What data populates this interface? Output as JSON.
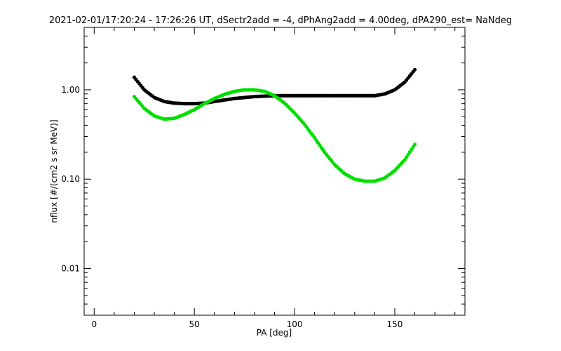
{
  "chart_data": {
    "type": "scatter",
    "title": "2021-02-01/17:20:24 - 17:26:26 UT, dSectr2add = -4, dPhAng2add = 4.00deg, dPA290_est=   NaNdeg",
    "xlabel": "PA [deg]",
    "ylabel": "nflux [#/(cm2 s sr MeV)]",
    "xlim": [
      -5,
      185
    ],
    "ylim": [
      0.003,
      5
    ],
    "yscale": "log",
    "grid": false,
    "x_ticks": [
      {
        "value": 0,
        "label": "0"
      },
      {
        "value": 50,
        "label": "50"
      },
      {
        "value": 100,
        "label": "100"
      },
      {
        "value": 150,
        "label": "150"
      }
    ],
    "y_ticks": [
      {
        "value": 0.01,
        "label": "0.01"
      },
      {
        "value": 0.1,
        "label": "0.10"
      },
      {
        "value": 1,
        "label": "1.00"
      }
    ],
    "series": [
      {
        "color": "#000000",
        "x": [
          20,
          25,
          30,
          35,
          40,
          45,
          50,
          55,
          60,
          65,
          70,
          75,
          80,
          85,
          90,
          95,
          100,
          105,
          110,
          115,
          120,
          125,
          130,
          135,
          140,
          145,
          150,
          155,
          160
        ],
        "y": [
          1.38,
          1.0,
          0.82,
          0.74,
          0.71,
          0.7,
          0.7,
          0.71,
          0.74,
          0.77,
          0.8,
          0.82,
          0.84,
          0.85,
          0.86,
          0.86,
          0.86,
          0.86,
          0.86,
          0.86,
          0.86,
          0.86,
          0.86,
          0.86,
          0.86,
          0.9,
          1.0,
          1.22,
          1.68
        ]
      },
      {
        "color": "#00e000",
        "x": [
          20,
          25,
          30,
          35,
          40,
          45,
          50,
          55,
          60,
          65,
          70,
          75,
          80,
          85,
          90,
          95,
          100,
          105,
          110,
          115,
          120,
          125,
          130,
          135,
          140,
          145,
          150,
          155,
          160
        ],
        "y": [
          0.84,
          0.62,
          0.51,
          0.47,
          0.48,
          0.53,
          0.6,
          0.7,
          0.8,
          0.89,
          0.96,
          1.0,
          1.0,
          0.96,
          0.86,
          0.71,
          0.55,
          0.41,
          0.29,
          0.2,
          0.145,
          0.115,
          0.1,
          0.095,
          0.095,
          0.103,
          0.125,
          0.165,
          0.245
        ]
      }
    ]
  }
}
